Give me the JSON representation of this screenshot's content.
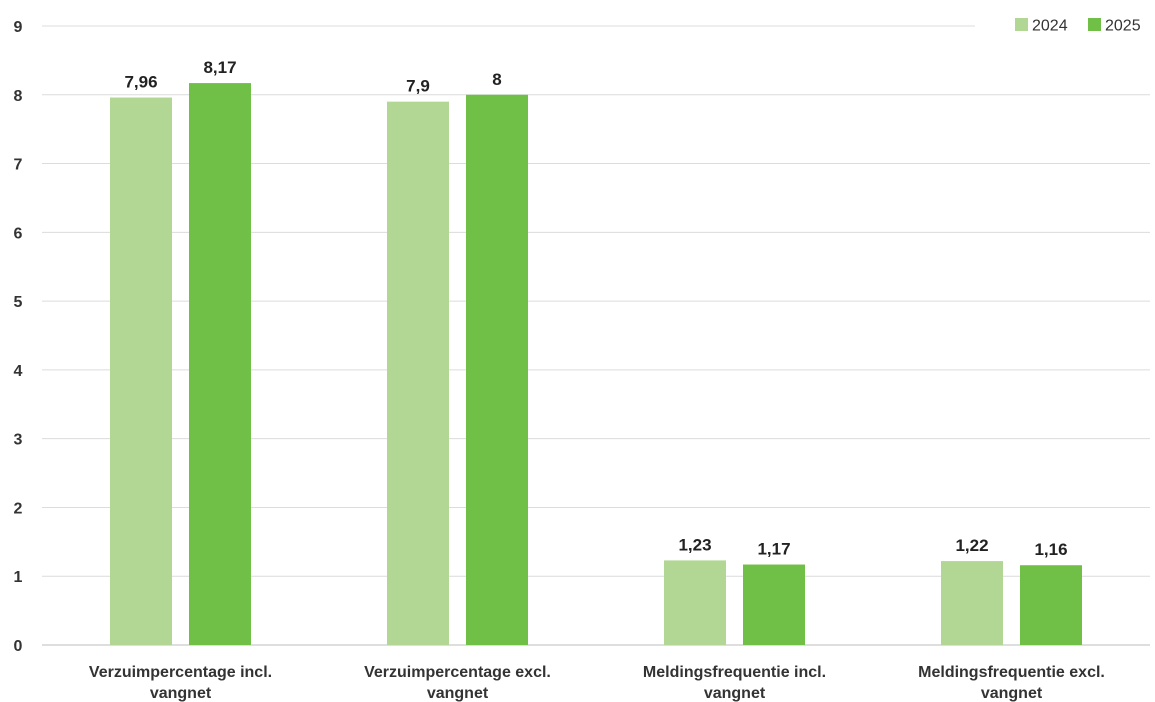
{
  "chart_data": {
    "type": "bar",
    "title": "",
    "xlabel": "",
    "ylabel": "",
    "ylim": [
      0,
      9
    ],
    "yticks": [
      0,
      1,
      2,
      3,
      4,
      5,
      6,
      7,
      8,
      9
    ],
    "grid": true,
    "legend_position": "top-right",
    "categories": [
      [
        "Verzuimpercentage incl.",
        "vangnet"
      ],
      [
        "Verzuimpercentage excl.",
        "vangnet"
      ],
      [
        "Meldingsfrequentie incl.",
        "vangnet"
      ],
      [
        "Meldingsfrequentie excl.",
        "vangnet"
      ]
    ],
    "series": [
      {
        "name": "2024",
        "color": "#b2d794",
        "values": [
          7.96,
          7.9,
          1.23,
          1.22
        ],
        "labels": [
          "7,96",
          "7,9",
          "1,23",
          "1,22"
        ]
      },
      {
        "name": "2025",
        "color": "#70bf47",
        "values": [
          8.17,
          8,
          1.17,
          1.16
        ],
        "labels": [
          "8,17",
          "8",
          "1,17",
          "1,16"
        ]
      }
    ]
  }
}
